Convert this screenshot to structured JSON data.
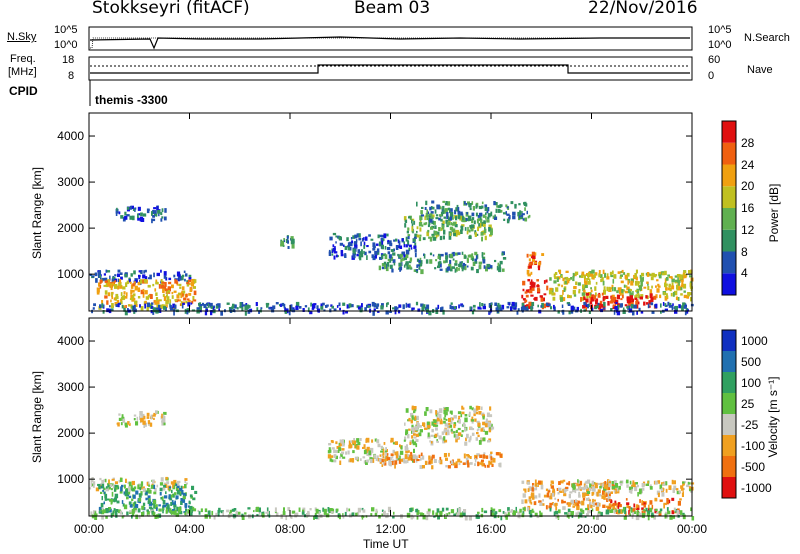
{
  "header": {
    "station": "Stokkseyri (fitACF)",
    "beam": "Beam 03",
    "date": "22/Nov/2016"
  },
  "top_panels": {
    "nsky_label": "N.Sky",
    "nsky_ticks": [
      "10^5",
      "10^0"
    ],
    "nsearch_label": "N.Search",
    "nsearch_ticks": [
      "10^5",
      "10^0"
    ],
    "freq_label_1": "Freq.",
    "freq_label_2": "[MHz]",
    "freq_ticks": [
      "18",
      "8"
    ],
    "nave_label": "Nave",
    "nave_ticks": [
      "60",
      "0"
    ],
    "cpid_label": "CPID",
    "cpid_text": "themis -3300"
  },
  "x_axis": {
    "label": "Time UT",
    "ticks": [
      "00:00",
      "04:00",
      "08:00",
      "12:00",
      "16:00",
      "20:00",
      "00:00"
    ],
    "range_hours": [
      0,
      24
    ]
  },
  "power_panel": {
    "ylabel": "Slant Range [km]",
    "yticks": [
      "1000",
      "2000",
      "3000",
      "4000"
    ],
    "colorbar_label": "Power [dB]",
    "colorbar_ticks": [
      "4",
      "8",
      "12",
      "16",
      "20",
      "24",
      "28"
    ],
    "colors": [
      "#1010e0",
      "#2050b0",
      "#309060",
      "#60b050",
      "#c0c020",
      "#f0a010",
      "#f06010",
      "#e01010"
    ]
  },
  "velocity_panel": {
    "ylabel": "Slant Range [km]",
    "yticks": [
      "1000",
      "2000",
      "3000",
      "4000"
    ],
    "colorbar_label": "Velocity [m s⁻¹]",
    "colorbar_ticks": [
      "1000",
      "500",
      "100",
      "25",
      "-25",
      "-100",
      "-500",
      "-1000"
    ],
    "colors": [
      "#1030c0",
      "#2070b0",
      "#30a060",
      "#60c040",
      "#c8c8c0",
      "#f0a020",
      "#f07010",
      "#e01010"
    ]
  },
  "chart_data": {
    "type": "heatmap",
    "x_unit": "hours UT",
    "y_unit": "km",
    "xlim": [
      0,
      24
    ],
    "ylim": [
      200,
      4500
    ],
    "power_regions": [
      {
        "t0": 0.0,
        "t1": 4.0,
        "r0": 850,
        "r1": 1100,
        "level": 1
      },
      {
        "t0": 0.3,
        "t1": 4.2,
        "r0": 300,
        "r1": 900,
        "level": 5
      },
      {
        "t0": 1.0,
        "t1": 3.0,
        "r0": 2200,
        "r1": 2500,
        "level": 1
      },
      {
        "t0": 7.6,
        "t1": 8.2,
        "r0": 1600,
        "r1": 1850,
        "level": 2
      },
      {
        "t0": 9.5,
        "t1": 13.0,
        "r0": 1400,
        "r1": 1900,
        "level": 1
      },
      {
        "t0": 11.5,
        "t1": 16.5,
        "r0": 1100,
        "r1": 1500,
        "level": 2
      },
      {
        "t0": 12.5,
        "t1": 16.0,
        "r0": 1800,
        "r1": 2300,
        "level": 3
      },
      {
        "t0": 13.0,
        "t1": 17.5,
        "r0": 2200,
        "r1": 2600,
        "level": 2
      },
      {
        "t0": 17.2,
        "t1": 18.2,
        "r0": 300,
        "r1": 900,
        "level": 7
      },
      {
        "t0": 17.4,
        "t1": 18.0,
        "r0": 1000,
        "r1": 1500,
        "level": 6
      },
      {
        "t0": 18.3,
        "t1": 24.0,
        "r0": 500,
        "r1": 1100,
        "level": 4
      },
      {
        "t0": 19.5,
        "t1": 22.5,
        "r0": 300,
        "r1": 600,
        "level": 7
      },
      {
        "t0": 0.0,
        "t1": 24.0,
        "r0": 200,
        "r1": 400,
        "level": 1
      }
    ],
    "velocity_regions": [
      {
        "t0": 0.0,
        "t1": 4.0,
        "r0": 800,
        "r1": 1050,
        "level": 4
      },
      {
        "t0": 0.3,
        "t1": 4.2,
        "r0": 300,
        "r1": 900,
        "level": 2
      },
      {
        "t0": 1.0,
        "t1": 3.0,
        "r0": 2200,
        "r1": 2500,
        "level": 4
      },
      {
        "t0": 9.5,
        "t1": 13.0,
        "r0": 1400,
        "r1": 1900,
        "level": 4
      },
      {
        "t0": 11.5,
        "t1": 16.5,
        "r0": 1300,
        "r1": 1600,
        "level": 5
      },
      {
        "t0": 12.5,
        "t1": 16.0,
        "r0": 1800,
        "r1": 2600,
        "level": 4
      },
      {
        "t0": 17.2,
        "t1": 21.0,
        "r0": 400,
        "r1": 1000,
        "level": 5
      },
      {
        "t0": 19.0,
        "t1": 24.0,
        "r0": 700,
        "r1": 1000,
        "level": 4
      },
      {
        "t0": 20.5,
        "t1": 23.5,
        "r0": 300,
        "r1": 600,
        "level": 6
      },
      {
        "t0": 0.0,
        "t1": 24.0,
        "r0": 200,
        "r1": 400,
        "level": 3
      }
    ]
  }
}
